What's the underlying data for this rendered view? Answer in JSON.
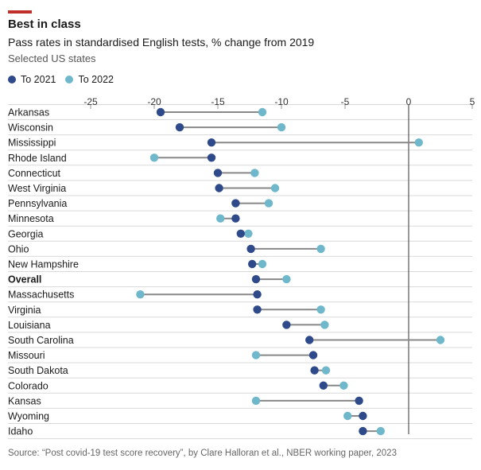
{
  "header": {
    "title": "Best in class",
    "subtitle": "Pass rates in standardised English tests, % change from 2019",
    "note": "Selected US states"
  },
  "legend": [
    {
      "label": "To 2021",
      "color": "#2e4a8a"
    },
    {
      "label": "To 2022",
      "color": "#6fb8cc"
    }
  ],
  "colors": {
    "accent": "#c0302a",
    "to2021": "#2e4a8a",
    "to2022": "#6fb8cc",
    "connector": "#888888",
    "grid": "#d9d9d9",
    "zero": "#555555"
  },
  "chart_data": {
    "type": "dot-range",
    "title": "Best in class",
    "xlabel": "Pass rates in standardised English tests, % change from 2019",
    "xlim": [
      -25,
      5
    ],
    "xticks": [
      -25,
      -20,
      -15,
      -10,
      -5,
      0,
      5
    ],
    "series": [
      {
        "name": "To 2021",
        "values": [
          -19.5,
          -18.0,
          -15.5,
          -15.5,
          -15.0,
          -14.9,
          -13.6,
          -13.6,
          -13.2,
          -12.4,
          -12.3,
          -12.0,
          -11.9,
          -11.9,
          -9.6,
          -7.8,
          -7.5,
          -7.4,
          -6.7,
          -3.9,
          -3.6,
          -3.6
        ]
      },
      {
        "name": "To 2022",
        "values": [
          -11.5,
          -10.0,
          0.8,
          -20.0,
          -12.1,
          -10.5,
          -11.0,
          -14.8,
          -12.6,
          -6.9,
          -11.5,
          -9.6,
          -21.1,
          -6.9,
          -6.6,
          2.5,
          -12.0,
          -6.5,
          -5.1,
          -12.0,
          -4.8,
          -2.2
        ]
      }
    ],
    "categories": [
      "Arkansas",
      "Wisconsin",
      "Mississippi",
      "Rhode Island",
      "Connecticut",
      "West Virginia",
      "Pennsylvania",
      "Minnesota",
      "Georgia",
      "Ohio",
      "New Hampshire",
      "Overall",
      "Massachusetts",
      "Virginia",
      "Louisiana",
      "South Carolina",
      "Missouri",
      "South Dakota",
      "Colorado",
      "Kansas",
      "Wyoming",
      "Idaho"
    ],
    "bold_categories": [
      "Overall"
    ]
  },
  "footer": {
    "source": "Source: “Post covid-19 test score recovery”, by Clare Halloran et al., NBER working paper, 2023"
  }
}
